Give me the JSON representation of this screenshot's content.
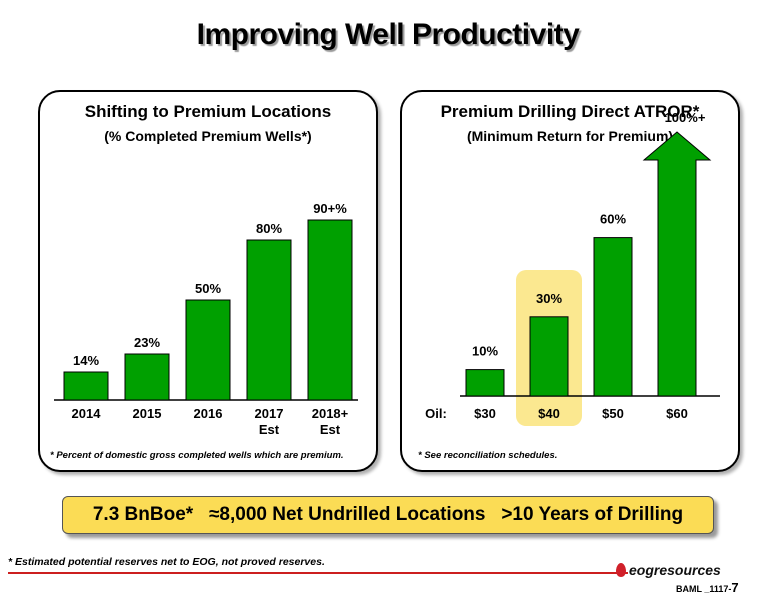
{
  "title": "Improving Well Productivity",
  "left_panel": {
    "title": "Shifting to Premium Locations",
    "subtitle": "(% Completed Premium Wells*)",
    "footnote": "* Percent of domestic gross completed wells which are premium."
  },
  "right_panel": {
    "title": "Premium Drilling Direct ATROR*",
    "subtitle": "(Minimum Return for Premium)",
    "axis_prefix": "Oil:",
    "footnote": "* See reconciliation schedules."
  },
  "chart_data": [
    {
      "type": "bar",
      "title": "Shifting to Premium Locations",
      "subtitle": "(% Completed Premium Wells*)",
      "categories": [
        "2014",
        "2015",
        "2016",
        "2017\nEst",
        "2018+\nEst"
      ],
      "values": [
        14,
        23,
        50,
        80,
        90
      ],
      "data_labels": [
        "14%",
        "23%",
        "50%",
        "80%",
        "90+%"
      ],
      "ylim": [
        0,
        100
      ],
      "grid": false,
      "color": "#00a000"
    },
    {
      "type": "bar",
      "title": "Premium Drilling Direct ATROR*",
      "subtitle": "(Minimum Return for Premium)",
      "categories": [
        "$30",
        "$40",
        "$50",
        "$60"
      ],
      "values": [
        10,
        30,
        60,
        100
      ],
      "data_labels": [
        "10%",
        "30%",
        "60%",
        "100%+"
      ],
      "highlight": "$40",
      "last_bar_shape": "arrow",
      "ylim": [
        0,
        110
      ],
      "grid": false,
      "color": "#00a000",
      "highlight_color": "#fbe890"
    }
  ],
  "banner": {
    "text": "7.3 BnBoe*   ≈8,000 Net Undrilled Locations   >10 Years of Drilling"
  },
  "bottom_note": "* Estimated potential reserves net to EOG, not proved reserves.",
  "logo": "eogresources",
  "slide_code": "BAML _1117-",
  "page_number": "7"
}
